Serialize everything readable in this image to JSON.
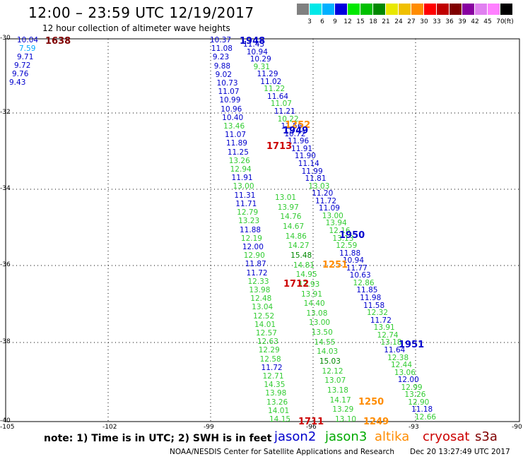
{
  "title": "12:00 – 23:59 UTC 12/19/2017",
  "subtitle": "12 hour collection of altimeter wave heights",
  "colorbar": {
    "labels": [
      "3",
      "6",
      "9",
      "12",
      "15",
      "18",
      "21",
      "24",
      "27",
      "30",
      "33",
      "36",
      "39",
      "42",
      "45",
      "70",
      "(ft)"
    ],
    "colors": [
      "#808080",
      "#00e8e8",
      "#00b0ff",
      "#0000dd",
      "#00e800",
      "#00c000",
      "#008800",
      "#e8e800",
      "#f0c000",
      "#ff8c00",
      "#ff0000",
      "#c00000",
      "#800000",
      "#8800a0",
      "#e080f0",
      "#ff80ff",
      "#000000"
    ]
  },
  "axes": {
    "lat_ticks": [
      "-30",
      "-32",
      "-34",
      "-36",
      "-38",
      "-40"
    ],
    "lon_ticks": [
      "-105",
      "-102",
      "-99",
      "-96",
      "-93",
      "-90"
    ]
  },
  "time_labels": [
    {
      "text": "1638",
      "color": "#800000"
    },
    {
      "text": "1948",
      "color": "#0000cc"
    },
    {
      "text": "1252",
      "color": "#ff8c00"
    },
    {
      "text": "1949",
      "color": "#0000cc"
    },
    {
      "text": "1713",
      "color": "#cc0000"
    },
    {
      "text": "1950",
      "color": "#0000cc"
    },
    {
      "text": "1251",
      "color": "#ff8c00"
    },
    {
      "text": "1712",
      "color": "#cc0000"
    },
    {
      "text": "1951",
      "color": "#0000cc"
    },
    {
      "text": "1250",
      "color": "#ff8c00"
    },
    {
      "text": "1711",
      "color": "#cc0000"
    },
    {
      "text": "1249",
      "color": "#ff8c00"
    }
  ],
  "values": {
    "west_track": [
      "10.04",
      "7.59",
      "9.71",
      "9.72",
      "9.76",
      "9.43"
    ],
    "west_track_colors": [
      "#0000cc",
      "#00aaff",
      "#0000cc",
      "#0000cc",
      "#0000cc",
      "#0000cc"
    ],
    "track_a": [
      "10.37",
      "11.08",
      "9.23",
      "9.88",
      "9.02",
      "10.73",
      "11.07",
      "10.99",
      "10.96",
      "10.40",
      "13.46",
      "11.07",
      "11.89",
      "11.25",
      "13.26",
      "12.94",
      "11.91",
      "13.00",
      "11.31",
      "11.71",
      "12.79",
      "13.23",
      "11.88",
      "12.19",
      "12.00",
      "12.90",
      "11.87",
      "11.72",
      "12.33",
      "13.98",
      "12.48",
      "13.04",
      "12.52",
      "14.01",
      "12.57",
      "12.63",
      "12.29",
      "12.58",
      "11.72",
      "12.71",
      "14.35",
      "13.98",
      "13.26",
      "14.01",
      "14.15"
    ],
    "track_a_colors": [
      "#0000cc",
      "#0000cc",
      "#0000cc",
      "#0000cc",
      "#0000cc",
      "#0000cc",
      "#0000cc",
      "#0000cc",
      "#0000cc",
      "#0000cc",
      "#33cc33",
      "#0000cc",
      "#0000cc",
      "#0000cc",
      "#33cc33",
      "#33cc33",
      "#0000cc",
      "#33cc33",
      "#0000cc",
      "#0000cc",
      "#33cc33",
      "#33cc33",
      "#0000cc",
      "#33cc33",
      "#0000cc",
      "#33cc33",
      "#0000cc",
      "#0000cc",
      "#33cc33",
      "#33cc33",
      "#33cc33",
      "#33cc33",
      "#33cc33",
      "#33cc33",
      "#33cc33",
      "#33cc33",
      "#33cc33",
      "#33cc33",
      "#0000cc",
      "#33cc33",
      "#33cc33",
      "#33cc33",
      "#33cc33",
      "#33cc33",
      "#33cc33"
    ],
    "track_b": [
      "11.43",
      "10.94",
      "10.29",
      "9.31",
      "11.29",
      "11.02",
      "11.22",
      "11.64",
      "11.07",
      "11.21",
      "10.22",
      "11.56",
      "10.72",
      "11.96",
      "11.91",
      "11.90",
      "11.14",
      "11.99",
      "11.81",
      "13.03",
      "11.20",
      "11.72",
      "11.09",
      "13.00",
      "13.94",
      "12.16",
      "13.13",
      "12.59",
      "11.88",
      "10.94",
      "11.77",
      "10.63",
      "12.86",
      "11.85",
      "11.98",
      "11.58",
      "12.32",
      "11.72",
      "13.91",
      "12.74",
      "13.18",
      "11.64",
      "12.38",
      "12.44",
      "13.06",
      "12.00",
      "12.99",
      "13.26",
      "12.90",
      "11.18",
      "12.66"
    ],
    "track_b_colors": [
      "#0000cc",
      "#0000cc",
      "#0000cc",
      "#33cc33",
      "#0000cc",
      "#0000cc",
      "#33cc33",
      "#0000cc",
      "#33cc33",
      "#0000cc",
      "#33cc33",
      "#0000cc",
      "#0000cc",
      "#0000cc",
      "#0000cc",
      "#0000cc",
      "#0000cc",
      "#0000cc",
      "#0000cc",
      "#33cc33",
      "#0000cc",
      "#0000cc",
      "#0000cc",
      "#33cc33",
      "#33cc33",
      "#33cc33",
      "#33cc33",
      "#33cc33",
      "#0000cc",
      "#0000cc",
      "#0000cc",
      "#0000cc",
      "#33cc33",
      "#0000cc",
      "#0000cc",
      "#0000cc",
      "#33cc33",
      "#0000cc",
      "#33cc33",
      "#33cc33",
      "#33cc33",
      "#0000cc",
      "#33cc33",
      "#33cc33",
      "#33cc33",
      "#0000cc",
      "#33cc33",
      "#33cc33",
      "#33cc33",
      "#0000cc",
      "#33cc33"
    ],
    "track_c": [
      "13.01",
      "13.97",
      "14.76",
      "14.67",
      "14.86",
      "14.27",
      "15.48",
      "14.81",
      "14.95",
      "13.93",
      "13.91",
      "14.40",
      "13.08",
      "13.00",
      "13.50",
      "14.55",
      "14.03",
      "15.03",
      "12.12",
      "13.07",
      "13.18",
      "14.17",
      "13.29",
      "13.10"
    ],
    "track_c_colors": [
      "#33cc33",
      "#33cc33",
      "#33cc33",
      "#33cc33",
      "#33cc33",
      "#33cc33",
      "#008800",
      "#33cc33",
      "#33cc33",
      "#33cc33",
      "#33cc33",
      "#33cc33",
      "#33cc33",
      "#33cc33",
      "#33cc33",
      "#33cc33",
      "#33cc33",
      "#008800",
      "#33cc33",
      "#33cc33",
      "#33cc33",
      "#33cc33",
      "#33cc33",
      "#33cc33"
    ]
  },
  "note": "note: 1) Time is in UTC; 2) SWH is in feet",
  "legend": [
    {
      "text": "jason2",
      "color": "#0000cc"
    },
    {
      "text": "jason3",
      "color": "#00aa00"
    },
    {
      "text": "altika",
      "color": "#ff8c00"
    },
    {
      "text": "cryosat",
      "color": "#cc0000"
    },
    {
      "text": "s3a",
      "color": "#800000"
    }
  ],
  "credit": "NOAA/NESDIS Center for Satellite Applications and Research",
  "timestamp": "Dec 20 13:27:49 UTC 2017"
}
